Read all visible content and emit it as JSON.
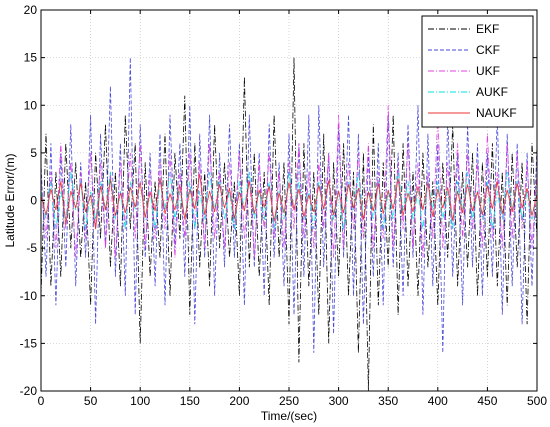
{
  "chart_data": {
    "type": "line",
    "title": "",
    "xlabel": "Time/(sec)",
    "ylabel": "Latitude Error/(m)",
    "xlim": [
      0,
      500
    ],
    "ylim": [
      -20,
      20
    ],
    "xticks": [
      0,
      50,
      100,
      150,
      200,
      250,
      300,
      350,
      400,
      450,
      500
    ],
    "yticks": [
      -20,
      -15,
      -10,
      -5,
      0,
      5,
      10,
      15,
      20
    ],
    "grid": true,
    "legend_position": "top-right",
    "series": [
      {
        "name": "EKF",
        "color": "#000000",
        "dash": "dashdot",
        "x": [
          0,
          5,
          10,
          15,
          20,
          25,
          30,
          35,
          40,
          45,
          50,
          55,
          60,
          65,
          70,
          75,
          80,
          85,
          90,
          95,
          100,
          105,
          110,
          115,
          120,
          125,
          130,
          135,
          140,
          145,
          150,
          155,
          160,
          165,
          170,
          175,
          180,
          185,
          190,
          195,
          200,
          205,
          210,
          215,
          220,
          225,
          230,
          235,
          240,
          245,
          250,
          255,
          260,
          265,
          270,
          275,
          280,
          285,
          290,
          295,
          300,
          305,
          310,
          315,
          320,
          325,
          330,
          335,
          340,
          345,
          350,
          355,
          360,
          365,
          370,
          375,
          380,
          385,
          390,
          395,
          400,
          405,
          410,
          415,
          420,
          425,
          430,
          435,
          440,
          445,
          450,
          455,
          460,
          465,
          470,
          475,
          480,
          485,
          490,
          495,
          500
        ],
        "values": [
          -10,
          7,
          -9,
          3,
          -8,
          6,
          -5,
          4,
          -6,
          2,
          -11,
          5,
          -4,
          8,
          -7,
          3,
          -9,
          9,
          -3,
          6,
          -15,
          4,
          -8,
          2,
          -6,
          7,
          -10,
          5,
          -4,
          11,
          -12,
          6,
          -7,
          3,
          -9,
          8,
          -5,
          4,
          -6,
          2,
          -10,
          13,
          -7,
          5,
          -8,
          3,
          -11,
          9,
          -6,
          4,
          -13,
          15,
          -17,
          6,
          -9,
          3,
          -12,
          7,
          -15,
          4,
          -8,
          6,
          -10,
          3,
          -16,
          5,
          -20,
          8,
          -11,
          4,
          -7,
          9,
          -12,
          6,
          -9,
          3,
          -10,
          5,
          -7,
          2,
          -11,
          4,
          -6,
          8,
          -9,
          3,
          -7,
          5,
          -10,
          4,
          -8,
          6,
          -9,
          3,
          -11,
          5,
          -7,
          4,
          -13,
          6,
          -4
        ]
      },
      {
        "name": "CKF",
        "color": "#4a4adc",
        "dash": "dashed",
        "x": [
          0,
          5,
          10,
          15,
          20,
          25,
          30,
          35,
          40,
          45,
          50,
          55,
          60,
          65,
          70,
          75,
          80,
          85,
          90,
          95,
          100,
          105,
          110,
          115,
          120,
          125,
          130,
          135,
          140,
          145,
          150,
          155,
          160,
          165,
          170,
          175,
          180,
          185,
          190,
          195,
          200,
          205,
          210,
          215,
          220,
          225,
          230,
          235,
          240,
          245,
          250,
          255,
          260,
          265,
          270,
          275,
          280,
          285,
          290,
          295,
          300,
          305,
          310,
          315,
          320,
          325,
          330,
          335,
          340,
          345,
          350,
          355,
          360,
          365,
          370,
          375,
          380,
          385,
          390,
          395,
          400,
          405,
          410,
          415,
          420,
          425,
          430,
          435,
          440,
          445,
          450,
          455,
          460,
          465,
          470,
          475,
          480,
          485,
          490,
          495,
          500
        ],
        "values": [
          4,
          -8,
          6,
          -11,
          5,
          -7,
          8,
          -9,
          4,
          -6,
          9,
          -13,
          7,
          -5,
          12,
          -8,
          6,
          -10,
          15,
          -12,
          8,
          -6,
          5,
          -9,
          7,
          -11,
          9,
          -5,
          6,
          -8,
          10,
          -13,
          7,
          -6,
          9,
          -10,
          5,
          -7,
          8,
          -6,
          6,
          -11,
          9,
          -7,
          5,
          -10,
          8,
          -6,
          4,
          -9,
          7,
          -12,
          6,
          -8,
          9,
          -16,
          10,
          -7,
          5,
          -14,
          8,
          -6,
          9,
          -10,
          7,
          -13,
          5,
          -8,
          6,
          -11,
          9,
          -7,
          5,
          -10,
          8,
          -6,
          10,
          -12,
          7,
          -9,
          6,
          -16,
          9,
          -8,
          5,
          -11,
          8,
          -7,
          6,
          -10,
          5,
          -8,
          9,
          -12,
          7,
          -9,
          6,
          -13,
          5,
          -9,
          6
        ]
      },
      {
        "name": "UKF",
        "color": "#e040e0",
        "dash": "dashdot",
        "x": [
          0,
          5,
          10,
          15,
          20,
          25,
          30,
          35,
          40,
          45,
          50,
          55,
          60,
          65,
          70,
          75,
          80,
          85,
          90,
          95,
          100,
          105,
          110,
          115,
          120,
          125,
          130,
          135,
          140,
          145,
          150,
          155,
          160,
          165,
          170,
          175,
          180,
          185,
          190,
          195,
          200,
          205,
          210,
          215,
          220,
          225,
          230,
          235,
          240,
          245,
          250,
          255,
          260,
          265,
          270,
          275,
          280,
          285,
          290,
          295,
          300,
          305,
          310,
          315,
          320,
          325,
          330,
          335,
          340,
          345,
          350,
          355,
          360,
          365,
          370,
          375,
          380,
          385,
          390,
          395,
          400,
          405,
          410,
          415,
          420,
          425,
          430,
          435,
          440,
          445,
          450,
          455,
          460,
          465,
          470,
          475,
          480,
          485,
          490,
          495,
          500
        ],
        "values": [
          2,
          -4,
          3,
          -5,
          6,
          -3,
          4,
          -6,
          3,
          -4,
          5,
          -3,
          4,
          -5,
          3,
          -6,
          4,
          -3,
          5,
          -4,
          6,
          -5,
          3,
          -4,
          4,
          -3,
          5,
          -6,
          3,
          -4,
          5,
          -3,
          4,
          -5,
          6,
          -4,
          3,
          -5,
          4,
          -3,
          5,
          -4,
          3,
          -6,
          4,
          -3,
          5,
          -4,
          3,
          -5,
          4,
          -3,
          6,
          -4,
          3,
          -5,
          4,
          -3,
          5,
          -6,
          9,
          -5,
          4,
          -3,
          5,
          -4,
          6,
          -5,
          3,
          -4,
          10,
          -5,
          4,
          -3,
          6,
          -5,
          4,
          -6,
          3,
          -4,
          9,
          -5,
          4,
          -3,
          6,
          -4,
          5,
          -3,
          4,
          -5,
          7,
          -4,
          3,
          -5,
          6,
          -4,
          5,
          -3,
          4,
          -5,
          3
        ]
      },
      {
        "name": "AUKF",
        "color": "#00e0e0",
        "dash": "dashdot",
        "x": [
          0,
          5,
          10,
          15,
          20,
          25,
          30,
          35,
          40,
          45,
          50,
          55,
          60,
          65,
          70,
          75,
          80,
          85,
          90,
          95,
          100,
          105,
          110,
          115,
          120,
          125,
          130,
          135,
          140,
          145,
          150,
          155,
          160,
          165,
          170,
          175,
          180,
          185,
          190,
          195,
          200,
          205,
          210,
          215,
          220,
          225,
          230,
          235,
          240,
          245,
          250,
          255,
          260,
          265,
          270,
          275,
          280,
          285,
          290,
          295,
          300,
          305,
          310,
          315,
          320,
          325,
          330,
          335,
          340,
          345,
          350,
          355,
          360,
          365,
          370,
          375,
          380,
          385,
          390,
          395,
          400,
          405,
          410,
          415,
          420,
          425,
          430,
          435,
          440,
          445,
          450,
          455,
          460,
          465,
          470,
          475,
          480,
          485,
          490,
          495,
          500
        ],
        "values": [
          1,
          -2,
          2,
          -3,
          1,
          -2,
          3,
          -1,
          2,
          -3,
          1,
          -2,
          2,
          -1,
          3,
          -2,
          1,
          -3,
          2,
          -1,
          2,
          -2,
          1,
          -3,
          2,
          -1,
          3,
          -2,
          1,
          -2,
          2,
          -3,
          1,
          -2,
          3,
          -1,
          2,
          -2,
          1,
          -3,
          2,
          -1,
          3,
          -2,
          1,
          -2,
          2,
          -3,
          1,
          -2,
          3,
          -1,
          2,
          -2,
          1,
          -3,
          2,
          -1,
          2,
          -2,
          1,
          -3,
          2,
          -1,
          3,
          -2,
          1,
          -2,
          2,
          -3,
          1,
          -2,
          3,
          -1,
          2,
          -2,
          1,
          -3,
          2,
          -1,
          2,
          -2,
          1,
          -3,
          2,
          -1,
          3,
          -2,
          1,
          -2,
          2,
          -3,
          1,
          -2,
          3,
          -1,
          2,
          -2,
          1,
          -2,
          1
        ]
      },
      {
        "name": "NAUKF",
        "color": "#ee3333",
        "dash": "solid",
        "x": [
          0,
          5,
          10,
          15,
          20,
          25,
          30,
          35,
          40,
          45,
          50,
          55,
          60,
          65,
          70,
          75,
          80,
          85,
          90,
          95,
          100,
          105,
          110,
          115,
          120,
          125,
          130,
          135,
          140,
          145,
          150,
          155,
          160,
          165,
          170,
          175,
          180,
          185,
          190,
          195,
          200,
          205,
          210,
          215,
          220,
          225,
          230,
          235,
          240,
          245,
          250,
          255,
          260,
          265,
          270,
          275,
          280,
          285,
          290,
          295,
          300,
          305,
          310,
          315,
          320,
          325,
          330,
          335,
          340,
          345,
          350,
          355,
          360,
          365,
          370,
          375,
          380,
          385,
          390,
          395,
          400,
          405,
          410,
          415,
          420,
          425,
          430,
          435,
          440,
          445,
          450,
          455,
          460,
          465,
          470,
          475,
          480,
          485,
          490,
          495,
          500
        ],
        "values": [
          0.5,
          -1.5,
          1.2,
          -1,
          2,
          -2.5,
          1,
          -0.8,
          1.8,
          -1.2,
          0.6,
          -3,
          1.5,
          -1,
          2.2,
          -1.6,
          0.8,
          -1.3,
          1.4,
          -0.7,
          1.9,
          -1.8,
          0.9,
          -1.1,
          2.4,
          -1.4,
          0.7,
          -1,
          1.6,
          -2,
          1.2,
          -0.9,
          2.8,
          -1.5,
          1,
          -1.2,
          1.7,
          -0.8,
          1.3,
          -1.9,
          0.9,
          -1.1,
          2,
          -1.4,
          1.1,
          -0.7,
          1.5,
          -2.2,
          0.8,
          -1.3,
          1.9,
          -1,
          1.2,
          -1.7,
          0.6,
          -1.2,
          1.6,
          -0.9,
          2.1,
          -1.5,
          1,
          -1.3,
          1.7,
          -0.8,
          1.3,
          -2,
          0.9,
          -1.1,
          1.8,
          -1.4,
          1.1,
          -0.9,
          2.3,
          -1.6,
          0.8,
          -1.2,
          1.5,
          -1,
          1.9,
          -1.7,
          1.2,
          -0.8,
          1.4,
          -2.1,
          1,
          -1.3,
          1.7,
          -1.1,
          0.9,
          -1.5,
          1.6,
          -0.9,
          2,
          -1.4,
          1.1,
          -1.2,
          1.8,
          -0.8,
          1.3,
          -1.6,
          0.7
        ]
      }
    ]
  }
}
